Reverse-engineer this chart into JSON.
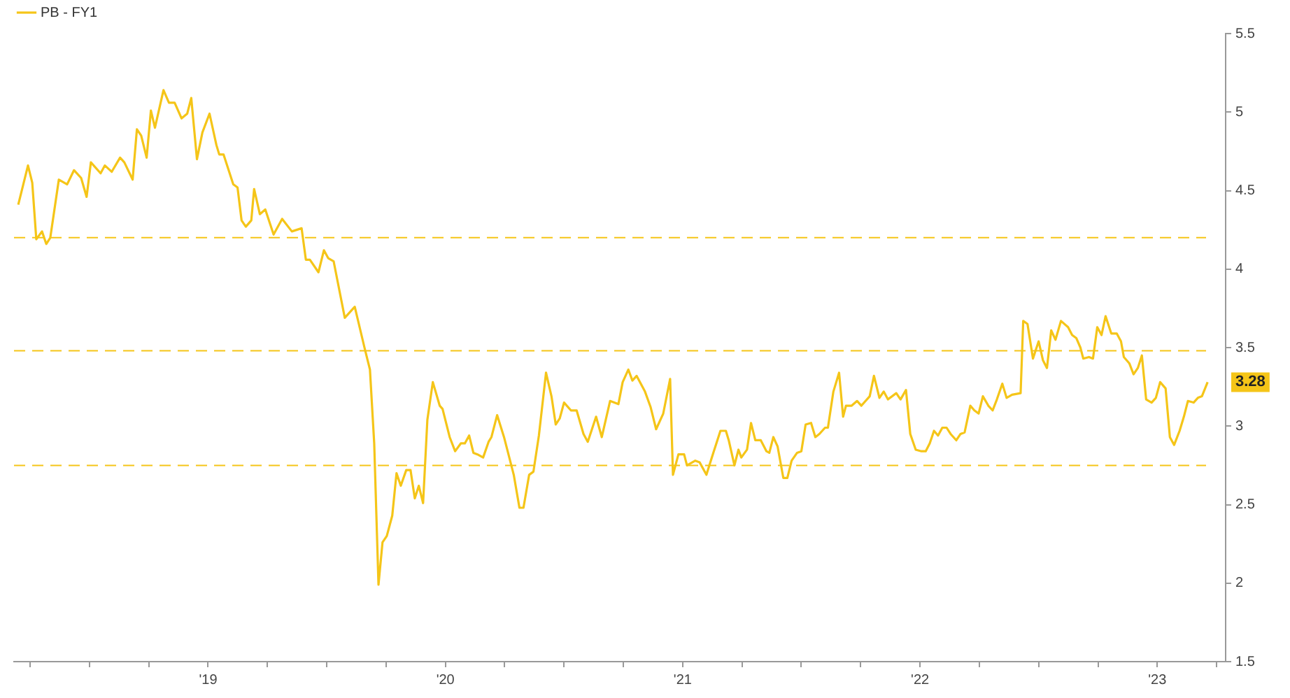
{
  "chart_data": {
    "type": "line",
    "legend": "top left",
    "marker": "none",
    "line_style": "solid",
    "grid": false,
    "series": [
      {
        "name": "PB - FY1",
        "color": "#f5c518",
        "x": [
          2018.2,
          2018.241,
          2018.259,
          2018.276,
          2018.3,
          2018.318,
          2018.335,
          2018.371,
          2018.406,
          2018.435,
          2018.465,
          2018.488,
          2018.506,
          2018.547,
          2018.565,
          2018.594,
          2018.629,
          2018.647,
          2018.682,
          2018.7,
          2018.718,
          2018.741,
          2018.759,
          2018.776,
          2018.812,
          2018.835,
          2018.859,
          2018.888,
          2018.912,
          2018.929,
          2018.953,
          2018.976,
          2019.006,
          2019.035,
          2019.047,
          2019.065,
          2019.106,
          2019.124,
          2019.141,
          2019.159,
          2019.182,
          2019.194,
          2019.218,
          2019.241,
          2019.276,
          2019.312,
          2019.353,
          2019.394,
          2019.412,
          2019.429,
          2019.465,
          2019.488,
          2019.506,
          2019.529,
          2019.576,
          2019.618,
          2019.659,
          2019.682,
          2019.7,
          2019.718,
          2019.735,
          2019.753,
          2019.776,
          2019.794,
          2019.812,
          2019.835,
          2019.853,
          2019.871,
          2019.888,
          2019.906,
          2019.924,
          2019.947,
          2019.976,
          2019.988,
          2020.018,
          2020.041,
          2020.065,
          2020.082,
          2020.1,
          2020.118,
          2020.135,
          2020.159,
          2020.182,
          2020.194,
          2020.218,
          2020.247,
          2020.288,
          2020.312,
          2020.329,
          2020.353,
          2020.371,
          2020.394,
          2020.424,
          2020.447,
          2020.465,
          2020.482,
          2020.5,
          2020.529,
          2020.553,
          2020.582,
          2020.6,
          2020.635,
          2020.659,
          2020.694,
          2020.729,
          2020.747,
          2020.771,
          2020.788,
          2020.806,
          2020.841,
          2020.865,
          2020.888,
          2020.918,
          2020.947,
          2020.959,
          2020.982,
          2021.006,
          2021.018,
          2021.053,
          2021.071,
          2021.1,
          2021.129,
          2021.159,
          2021.182,
          2021.194,
          2021.218,
          2021.235,
          2021.247,
          2021.271,
          2021.288,
          2021.306,
          2021.329,
          2021.353,
          2021.365,
          2021.382,
          2021.4,
          2021.424,
          2021.441,
          2021.459,
          2021.482,
          2021.5,
          2021.518,
          2021.541,
          2021.559,
          2021.576,
          2021.6,
          2021.612,
          2021.635,
          2021.659,
          2021.676,
          2021.688,
          2021.712,
          2021.735,
          2021.753,
          2021.788,
          2021.806,
          2021.829,
          2021.847,
          2021.865,
          2021.9,
          2021.918,
          2021.941,
          2021.959,
          2021.982,
          2022.006,
          2022.024,
          2022.041,
          2022.059,
          2022.076,
          2022.094,
          2022.112,
          2022.129,
          2022.153,
          2022.171,
          2022.188,
          2022.212,
          2022.229,
          2022.247,
          2022.265,
          2022.288,
          2022.306,
          2022.324,
          2022.347,
          2022.365,
          2022.388,
          2022.424,
          2022.435,
          2022.453,
          2022.476,
          2022.5,
          2022.518,
          2022.535,
          2022.553,
          2022.571,
          2022.594,
          2022.624,
          2022.641,
          2022.659,
          2022.676,
          2022.688,
          2022.712,
          2022.729,
          2022.747,
          2022.765,
          2022.782,
          2022.806,
          2022.829,
          2022.847,
          2022.859,
          2022.882,
          2022.9,
          2022.918,
          2022.935,
          2022.953,
          2022.976,
          2022.994,
          2023.012,
          2023.035,
          2023.053,
          2023.071,
          2023.094,
          2023.112,
          2023.129,
          2023.153,
          2023.171,
          2023.188,
          2023.212
        ],
        "values": [
          4.41,
          4.66,
          4.55,
          4.19,
          4.24,
          4.16,
          4.2,
          4.57,
          4.54,
          4.63,
          4.58,
          4.46,
          4.68,
          4.61,
          4.66,
          4.62,
          4.71,
          4.68,
          4.57,
          4.89,
          4.85,
          4.71,
          5.01,
          4.9,
          5.14,
          5.06,
          5.06,
          4.96,
          4.99,
          5.09,
          4.7,
          4.87,
          4.99,
          4.79,
          4.73,
          4.73,
          4.54,
          4.52,
          4.31,
          4.27,
          4.31,
          4.51,
          4.35,
          4.38,
          4.22,
          4.32,
          4.24,
          4.26,
          4.06,
          4.06,
          3.98,
          4.12,
          4.07,
          4.05,
          3.69,
          3.76,
          3.5,
          3.36,
          2.89,
          1.99,
          2.26,
          2.3,
          2.43,
          2.7,
          2.62,
          2.72,
          2.72,
          2.54,
          2.62,
          2.51,
          3.04,
          3.28,
          3.13,
          3.11,
          2.93,
          2.84,
          2.89,
          2.89,
          2.94,
          2.83,
          2.82,
          2.8,
          2.9,
          2.93,
          3.07,
          2.93,
          2.69,
          2.48,
          2.48,
          2.69,
          2.71,
          2.94,
          3.34,
          3.19,
          3.01,
          3.05,
          3.15,
          3.1,
          3.1,
          2.95,
          2.9,
          3.06,
          2.93,
          3.16,
          3.14,
          3.28,
          3.36,
          3.29,
          3.32,
          3.22,
          3.12,
          2.98,
          3.08,
          3.3,
          2.69,
          2.82,
          2.82,
          2.75,
          2.78,
          2.77,
          2.69,
          2.83,
          2.97,
          2.97,
          2.91,
          2.75,
          2.85,
          2.8,
          2.85,
          3.02,
          2.91,
          2.91,
          2.84,
          2.83,
          2.93,
          2.87,
          2.67,
          2.67,
          2.78,
          2.83,
          2.84,
          3.01,
          3.02,
          2.93,
          2.95,
          2.99,
          2.99,
          3.22,
          3.34,
          3.06,
          3.13,
          3.13,
          3.16,
          3.13,
          3.19,
          3.32,
          3.18,
          3.22,
          3.17,
          3.21,
          3.17,
          3.23,
          2.95,
          2.85,
          2.84,
          2.84,
          2.89,
          2.97,
          2.94,
          2.99,
          2.99,
          2.95,
          2.91,
          2.95,
          2.96,
          3.13,
          3.1,
          3.08,
          3.19,
          3.13,
          3.1,
          3.17,
          3.27,
          3.18,
          3.2,
          3.21,
          3.67,
          3.65,
          3.43,
          3.54,
          3.42,
          3.37,
          3.61,
          3.55,
          3.67,
          3.63,
          3.58,
          3.56,
          3.5,
          3.43,
          3.44,
          3.43,
          3.63,
          3.58,
          3.7,
          3.59,
          3.59,
          3.54,
          3.44,
          3.4,
          3.33,
          3.37,
          3.45,
          3.17,
          3.15,
          3.18,
          3.28,
          3.24,
          2.93,
          2.88,
          2.97,
          3.06,
          3.16,
          3.15,
          3.18,
          3.19,
          3.28
        ]
      }
    ],
    "xlim": [
      2018.182,
      2023.288
    ],
    "xticks": [
      {
        "value": 2018.25,
        "label": null
      },
      {
        "value": 2018.5,
        "label": null
      },
      {
        "value": 2018.75,
        "label": null
      },
      {
        "value": 2019,
        "label": "'19"
      },
      {
        "value": 2019.25,
        "label": null
      },
      {
        "value": 2019.5,
        "label": null
      },
      {
        "value": 2019.75,
        "label": null
      },
      {
        "value": 2020,
        "label": "'20"
      },
      {
        "value": 2020.25,
        "label": null
      },
      {
        "value": 2020.5,
        "label": null
      },
      {
        "value": 2020.75,
        "label": null
      },
      {
        "value": 2021,
        "label": "'21"
      },
      {
        "value": 2021.25,
        "label": null
      },
      {
        "value": 2021.5,
        "label": null
      },
      {
        "value": 2021.75,
        "label": null
      },
      {
        "value": 2022,
        "label": "'22"
      },
      {
        "value": 2022.25,
        "label": null
      },
      {
        "value": 2022.5,
        "label": null
      },
      {
        "value": 2022.75,
        "label": null
      },
      {
        "value": 2023,
        "label": "'23"
      },
      {
        "value": 2023.25,
        "label": null
      }
    ],
    "ylim": [
      1.5,
      5.5
    ],
    "yticks": [
      1.5,
      2,
      2.5,
      3,
      3.5,
      4,
      4.5,
      5,
      5.5
    ],
    "ref_lines": [
      {
        "axis": "y",
        "value": 4.2,
        "color": "#f5c518",
        "line_style": "dashed"
      },
      {
        "axis": "y",
        "value": 3.48,
        "color": "#f5c518",
        "line_style": "dashed"
      },
      {
        "axis": "y",
        "value": 2.75,
        "color": "#f5c518",
        "line_style": "dashed"
      }
    ],
    "annotations": [
      "3.28"
    ]
  }
}
